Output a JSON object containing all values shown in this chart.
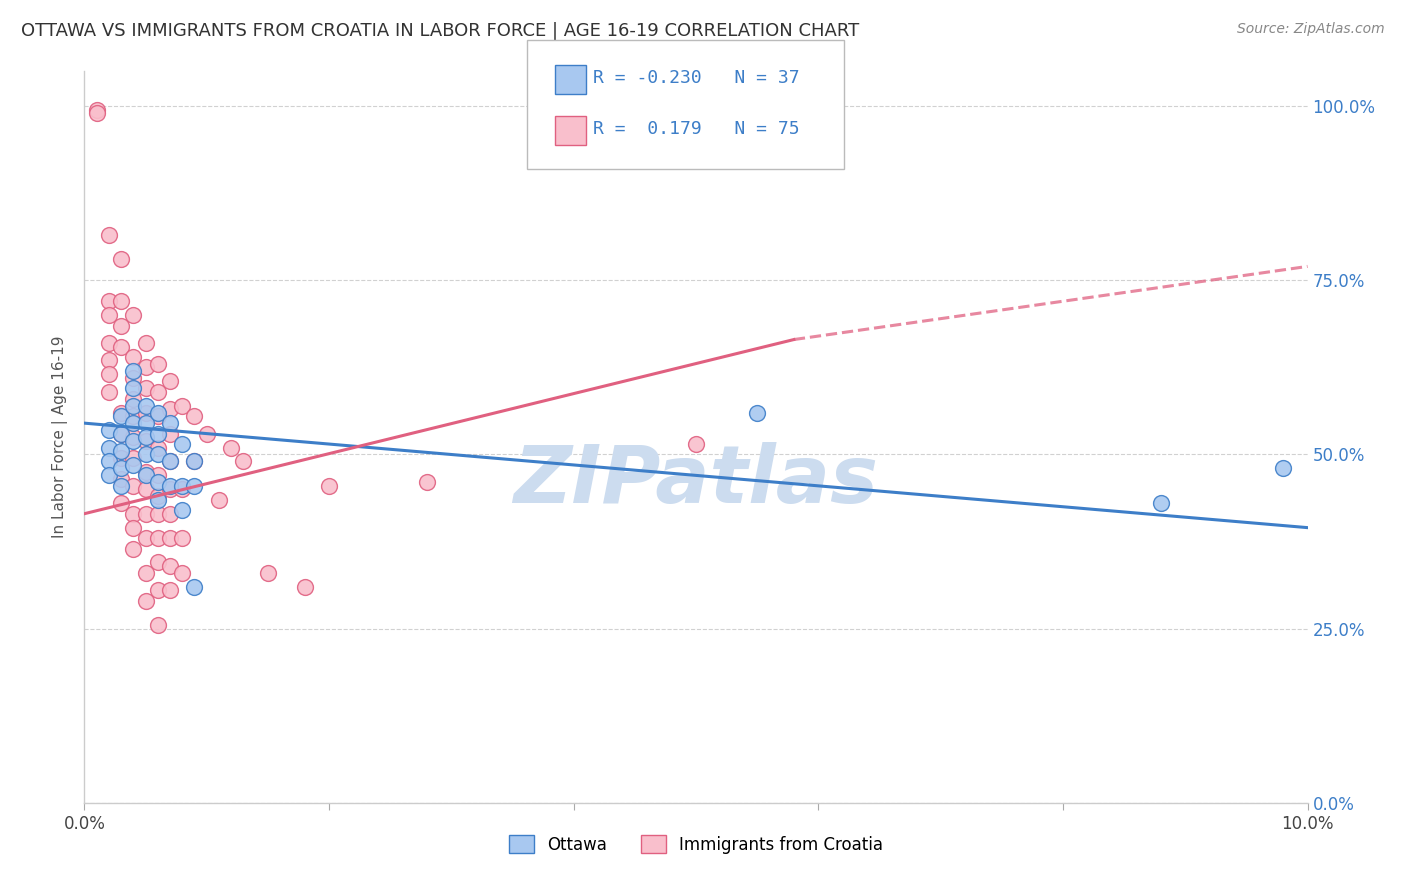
{
  "title": "OTTAWA VS IMMIGRANTS FROM CROATIA IN LABOR FORCE | AGE 16-19 CORRELATION CHART",
  "source": "Source: ZipAtlas.com",
  "ylabel": "In Labor Force | Age 16-19",
  "xlim": [
    0.0,
    0.1
  ],
  "ylim": [
    0.0,
    1.05
  ],
  "yticks": [
    0.0,
    0.25,
    0.5,
    0.75,
    1.0
  ],
  "ytick_labels": [
    "0.0%",
    "25.0%",
    "50.0%",
    "75.0%",
    "100.0%"
  ],
  "xticks": [
    0.0,
    0.02,
    0.04,
    0.06,
    0.08,
    0.1
  ],
  "xtick_labels": [
    "0.0%",
    "",
    "",
    "",
    "",
    "10.0%"
  ],
  "legend_r_blue": "-0.230",
  "legend_n_blue": "37",
  "legend_r_pink": "0.179",
  "legend_n_pink": "75",
  "blue_color": "#a8c8f0",
  "pink_color": "#f9bfcc",
  "blue_line_color": "#3d7ec8",
  "pink_line_color": "#e06080",
  "blue_line_x0": 0.0,
  "blue_line_y0": 0.545,
  "blue_line_x1": 0.1,
  "blue_line_y1": 0.395,
  "pink_line_x0": 0.0,
  "pink_line_y0": 0.415,
  "pink_line_solid_x1": 0.058,
  "pink_line_solid_y1": 0.665,
  "pink_line_dash_x1": 0.1,
  "pink_line_dash_y1": 0.77,
  "blue_scatter": [
    [
      0.002,
      0.535
    ],
    [
      0.002,
      0.51
    ],
    [
      0.002,
      0.49
    ],
    [
      0.002,
      0.47
    ],
    [
      0.003,
      0.555
    ],
    [
      0.003,
      0.53
    ],
    [
      0.003,
      0.505
    ],
    [
      0.003,
      0.48
    ],
    [
      0.003,
      0.455
    ],
    [
      0.004,
      0.62
    ],
    [
      0.004,
      0.595
    ],
    [
      0.004,
      0.57
    ],
    [
      0.004,
      0.545
    ],
    [
      0.004,
      0.52
    ],
    [
      0.004,
      0.485
    ],
    [
      0.005,
      0.57
    ],
    [
      0.005,
      0.545
    ],
    [
      0.005,
      0.525
    ],
    [
      0.005,
      0.5
    ],
    [
      0.005,
      0.47
    ],
    [
      0.006,
      0.56
    ],
    [
      0.006,
      0.53
    ],
    [
      0.006,
      0.5
    ],
    [
      0.006,
      0.46
    ],
    [
      0.006,
      0.435
    ],
    [
      0.007,
      0.545
    ],
    [
      0.007,
      0.49
    ],
    [
      0.007,
      0.455
    ],
    [
      0.008,
      0.515
    ],
    [
      0.008,
      0.455
    ],
    [
      0.008,
      0.42
    ],
    [
      0.009,
      0.49
    ],
    [
      0.009,
      0.455
    ],
    [
      0.009,
      0.31
    ],
    [
      0.055,
      0.56
    ],
    [
      0.088,
      0.43
    ],
    [
      0.098,
      0.48
    ]
  ],
  "pink_scatter": [
    [
      0.001,
      0.995
    ],
    [
      0.001,
      0.99
    ],
    [
      0.002,
      0.815
    ],
    [
      0.002,
      0.72
    ],
    [
      0.002,
      0.7
    ],
    [
      0.002,
      0.66
    ],
    [
      0.002,
      0.635
    ],
    [
      0.002,
      0.615
    ],
    [
      0.002,
      0.59
    ],
    [
      0.003,
      0.78
    ],
    [
      0.003,
      0.72
    ],
    [
      0.003,
      0.685
    ],
    [
      0.003,
      0.655
    ],
    [
      0.003,
      0.56
    ],
    [
      0.003,
      0.53
    ],
    [
      0.003,
      0.495
    ],
    [
      0.003,
      0.465
    ],
    [
      0.003,
      0.43
    ],
    [
      0.004,
      0.7
    ],
    [
      0.004,
      0.64
    ],
    [
      0.004,
      0.61
    ],
    [
      0.004,
      0.58
    ],
    [
      0.004,
      0.555
    ],
    [
      0.004,
      0.525
    ],
    [
      0.004,
      0.495
    ],
    [
      0.004,
      0.455
    ],
    [
      0.004,
      0.415
    ],
    [
      0.004,
      0.395
    ],
    [
      0.004,
      0.365
    ],
    [
      0.005,
      0.66
    ],
    [
      0.005,
      0.625
    ],
    [
      0.005,
      0.595
    ],
    [
      0.005,
      0.56
    ],
    [
      0.005,
      0.52
    ],
    [
      0.005,
      0.475
    ],
    [
      0.005,
      0.45
    ],
    [
      0.005,
      0.415
    ],
    [
      0.005,
      0.38
    ],
    [
      0.005,
      0.33
    ],
    [
      0.005,
      0.29
    ],
    [
      0.006,
      0.63
    ],
    [
      0.006,
      0.59
    ],
    [
      0.006,
      0.555
    ],
    [
      0.006,
      0.51
    ],
    [
      0.006,
      0.47
    ],
    [
      0.006,
      0.44
    ],
    [
      0.006,
      0.415
    ],
    [
      0.006,
      0.38
    ],
    [
      0.006,
      0.345
    ],
    [
      0.006,
      0.305
    ],
    [
      0.006,
      0.255
    ],
    [
      0.007,
      0.605
    ],
    [
      0.007,
      0.565
    ],
    [
      0.007,
      0.53
    ],
    [
      0.007,
      0.49
    ],
    [
      0.007,
      0.45
    ],
    [
      0.007,
      0.415
    ],
    [
      0.007,
      0.38
    ],
    [
      0.007,
      0.34
    ],
    [
      0.007,
      0.305
    ],
    [
      0.008,
      0.57
    ],
    [
      0.008,
      0.45
    ],
    [
      0.008,
      0.38
    ],
    [
      0.008,
      0.33
    ],
    [
      0.009,
      0.555
    ],
    [
      0.009,
      0.49
    ],
    [
      0.01,
      0.53
    ],
    [
      0.011,
      0.435
    ],
    [
      0.012,
      0.51
    ],
    [
      0.013,
      0.49
    ],
    [
      0.015,
      0.33
    ],
    [
      0.018,
      0.31
    ],
    [
      0.02,
      0.455
    ],
    [
      0.028,
      0.46
    ],
    [
      0.05,
      0.515
    ]
  ],
  "background_color": "#ffffff",
  "watermark_text": "ZIPatlas",
  "watermark_color": "#ccdcef"
}
